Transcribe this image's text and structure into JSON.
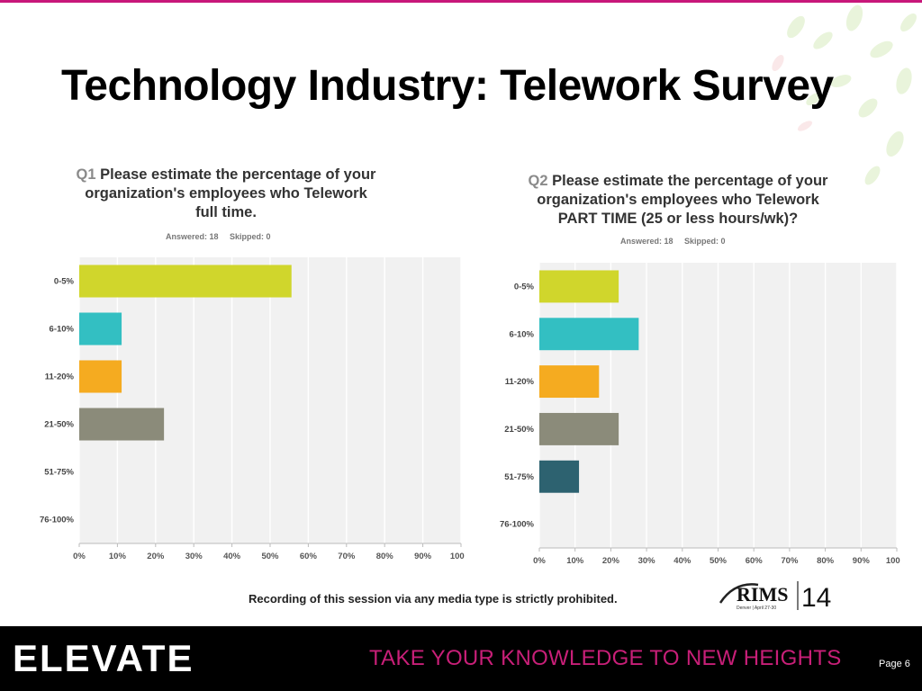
{
  "slide": {
    "title": "Technology Industry: Telework Survey",
    "footer_note": "Recording of this session via any media type is strictly prohibited.",
    "tagline": "TAKE YOUR KNOWLEDGE TO NEW HEIGHTS",
    "brand": "ELEVATE",
    "page": "Page 6",
    "rims_logo": {
      "name": "RIMS",
      "year": "14",
      "sub": "Denver | April 27-30"
    }
  },
  "colors": {
    "accent": "#c8177a",
    "bar_colors": [
      "#d0d62c",
      "#33bfc2",
      "#f5ab20",
      "#8b8b7a",
      "#2d6270",
      "#c3c8a8"
    ]
  },
  "chart_data": [
    {
      "type": "bar",
      "orientation": "horizontal",
      "qnum": "Q1",
      "title": "Please estimate the percentage of your organization's employees who Telework full time.",
      "title_lines": [
        "Please estimate the percentage of your",
        "organization's employees who Telework",
        "full time."
      ],
      "answered": "Answered: 18",
      "skipped": "Skipped: 0",
      "categories": [
        "0-5%",
        "6-10%",
        "11-20%",
        "21-50%",
        "51-75%",
        "76-100%"
      ],
      "values": [
        55.6,
        11.1,
        11.1,
        22.2,
        0,
        0
      ],
      "xticks": [
        "0%",
        "10%",
        "20%",
        "30%",
        "40%",
        "50%",
        "60%",
        "70%",
        "80%",
        "90%",
        "100%"
      ],
      "xlim": [
        0,
        100
      ],
      "grid": true
    },
    {
      "type": "bar",
      "orientation": "horizontal",
      "qnum": "Q2",
      "title": "Please estimate the percentage of your organization's employees who Telework PART TIME (25 or less hours/wk)?",
      "title_lines": [
        "Please estimate the percentage of your",
        "organization's employees who Telework",
        "PART TIME (25 or less hours/wk)?"
      ],
      "answered": "Answered: 18",
      "skipped": "Skipped: 0",
      "categories": [
        "0-5%",
        "6-10%",
        "11-20%",
        "21-50%",
        "51-75%",
        "76-100%"
      ],
      "values": [
        22.2,
        27.8,
        16.7,
        22.2,
        11.1,
        0
      ],
      "xticks": [
        "0%",
        "10%",
        "20%",
        "30%",
        "40%",
        "50%",
        "60%",
        "70%",
        "80%",
        "90%",
        "100%"
      ],
      "xlim": [
        0,
        100
      ],
      "grid": true
    }
  ]
}
